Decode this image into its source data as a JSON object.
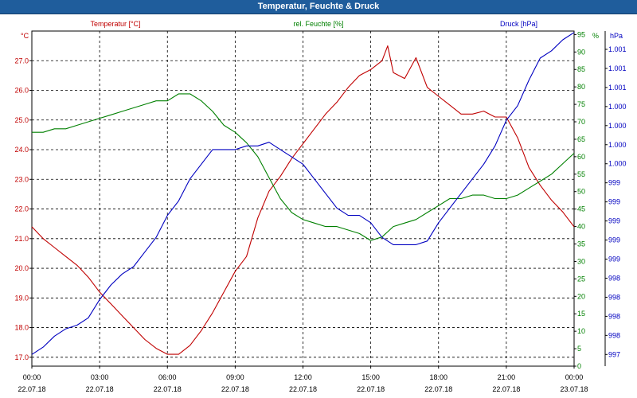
{
  "window": {
    "title": "Temperatur, Feuchte & Druck"
  },
  "colors": {
    "temperature": "#c00000",
    "humidity": "#008000",
    "pressure": "#0000c0",
    "axis": "#000000",
    "grid": "#000000"
  },
  "chart_data": {
    "type": "line",
    "title": "Temperatur, Feuchte & Druck",
    "legend": [
      {
        "name": "Temperatur [°C]",
        "color": "#c00000"
      },
      {
        "name": "rel. Feuchte [%]",
        "color": "#008000"
      },
      {
        "name": "Druck [hPa]",
        "color": "#0000c0"
      }
    ],
    "axes": {
      "temperature": {
        "unit": "°C",
        "ylim": [
          16.7,
          28.0
        ],
        "ticks": [
          "17.0",
          "18.0",
          "19.0",
          "20.0",
          "21.0",
          "22.0",
          "23.0",
          "24.0",
          "25.0",
          "26.0",
          "27.0"
        ]
      },
      "humidity": {
        "unit": "%",
        "ylim": [
          0,
          96
        ],
        "ticks": [
          "0",
          "5",
          "10",
          "15",
          "20",
          "25",
          "30",
          "35",
          "40",
          "45",
          "50",
          "55",
          "60",
          "65",
          "70",
          "75",
          "80",
          "85",
          "90",
          "95"
        ]
      },
      "pressure": {
        "unit": "hPa",
        "ylim": [
          996.84,
          1001.42
        ],
        "ticks": [
          "997",
          "998",
          "998",
          "998",
          "998",
          "999",
          "999",
          "999",
          "999",
          "999",
          "1.000",
          "1.000",
          "1.000",
          "1.000",
          "1.001",
          "1.001",
          "1.001"
        ]
      }
    },
    "x_axis": {
      "range_hours": [
        0,
        24
      ],
      "ticks": [
        {
          "time": "00:00",
          "date": "22.07.18"
        },
        {
          "time": "03:00",
          "date": "22.07.18"
        },
        {
          "time": "06:00",
          "date": "22.07.18"
        },
        {
          "time": "09:00",
          "date": "22.07.18"
        },
        {
          "time": "12:00",
          "date": "22.07.18"
        },
        {
          "time": "15:00",
          "date": "22.07.18"
        },
        {
          "time": "18:00",
          "date": "22.07.18"
        },
        {
          "time": "21:00",
          "date": "22.07.18"
        },
        {
          "time": "00:00",
          "date": "23.07.18"
        }
      ]
    },
    "grid": true,
    "series": [
      {
        "name": "Temperatur [°C]",
        "axis": "temperature",
        "x": [
          0,
          0.5,
          1,
          1.5,
          2,
          2.5,
          3,
          3.5,
          4,
          4.5,
          5,
          5.5,
          6,
          6.5,
          7,
          7.5,
          8,
          8.5,
          9,
          9.5,
          10,
          10.5,
          11,
          11.5,
          12,
          12.5,
          13,
          13.5,
          14,
          14.5,
          15,
          15.5,
          15.75,
          16,
          16.5,
          17,
          17.5,
          18,
          18.5,
          19,
          19.5,
          20,
          20.5,
          21,
          21.5,
          22,
          22.5,
          23,
          23.5,
          24
        ],
        "values": [
          21.4,
          21.0,
          20.7,
          20.4,
          20.1,
          19.7,
          19.2,
          18.8,
          18.4,
          18.0,
          17.6,
          17.3,
          17.1,
          17.1,
          17.4,
          17.9,
          18.5,
          19.2,
          19.9,
          20.4,
          21.7,
          22.6,
          23.1,
          23.7,
          24.2,
          24.7,
          25.2,
          25.6,
          26.1,
          26.5,
          26.7,
          27.0,
          27.5,
          26.6,
          26.4,
          27.1,
          26.1,
          25.8,
          25.5,
          25.2,
          25.2,
          25.3,
          25.1,
          25.1,
          24.4,
          23.4,
          22.8,
          22.3,
          21.9,
          21.4
        ]
      },
      {
        "name": "rel. Feuchte [%]",
        "axis": "humidity",
        "x": [
          0,
          0.5,
          1,
          1.5,
          2,
          2.5,
          3,
          3.5,
          4,
          4.5,
          5,
          5.5,
          6,
          6.5,
          7,
          7.5,
          8,
          8.5,
          9,
          9.5,
          10,
          10.5,
          11,
          11.5,
          12,
          12.5,
          13,
          13.5,
          14,
          14.5,
          15,
          15.5,
          16,
          16.5,
          17,
          17.5,
          18,
          18.5,
          19,
          19.5,
          20,
          20.5,
          21,
          21.5,
          22,
          22.5,
          23,
          23.5,
          24
        ],
        "values": [
          67,
          67,
          68,
          68,
          69,
          70,
          71,
          72,
          73,
          74,
          75,
          76,
          76,
          78,
          78,
          76,
          73,
          69,
          67,
          64,
          60,
          54,
          48,
          44,
          42,
          41,
          40,
          40,
          39,
          38,
          36,
          37,
          40,
          41,
          42,
          44,
          46,
          48,
          48,
          49,
          49,
          48,
          48,
          49,
          51,
          53,
          55,
          58,
          61
        ]
      },
      {
        "name": "Druck [hPa]",
        "axis": "pressure",
        "x": [
          0,
          0.5,
          1,
          1.5,
          2,
          2.5,
          3,
          3.5,
          4,
          4.5,
          5,
          5.5,
          6,
          6.5,
          7,
          7.5,
          8,
          8.5,
          9,
          9.5,
          10,
          10.5,
          11,
          11.5,
          12,
          12.5,
          13,
          13.5,
          14,
          14.5,
          15,
          15.5,
          16,
          16.5,
          17,
          17.5,
          18,
          18.5,
          19,
          19.5,
          20,
          20.5,
          21,
          21.5,
          22,
          22.5,
          23,
          23.5,
          24
        ],
        "values": [
          997.0,
          997.1,
          997.25,
          997.35,
          997.4,
          997.5,
          997.75,
          997.95,
          998.1,
          998.2,
          998.4,
          998.6,
          998.9,
          999.1,
          999.4,
          999.6,
          999.8,
          999.8,
          999.8,
          999.85,
          999.85,
          999.9,
          999.8,
          999.7,
          999.6,
          999.4,
          999.2,
          999.0,
          998.9,
          998.9,
          998.8,
          998.6,
          998.5,
          998.5,
          998.5,
          998.55,
          998.8,
          999.0,
          999.2,
          999.4,
          999.6,
          999.85,
          1000.2,
          1000.4,
          1000.75,
          1001.05,
          1001.15,
          1001.3,
          1001.4
        ]
      }
    ]
  }
}
